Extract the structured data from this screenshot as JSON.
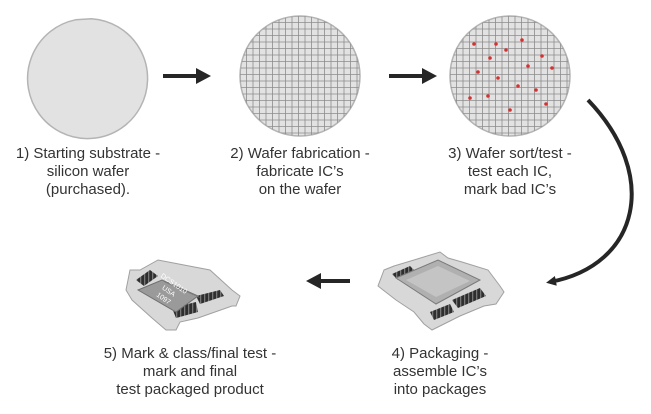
{
  "steps": [
    {
      "lines": [
        "1) Starting substrate -",
        "silicon wafer",
        "(purchased)."
      ]
    },
    {
      "lines": [
        "2) Wafer fabrication -",
        "fabricate IC’s",
        "on the wafer"
      ]
    },
    {
      "lines": [
        "3) Wafer sort/test -",
        "test each IC,",
        "mark bad IC’s"
      ]
    },
    {
      "lines": [
        "4) Packaging -",
        "assemble IC’s",
        "into packages"
      ]
    },
    {
      "lines": [
        "5) Mark & class/final test -",
        "mark and final",
        "test packaged product"
      ]
    }
  ],
  "chip_marking": [
    "DCS1010",
    "USA",
    "1097"
  ],
  "colors": {
    "wafer_fill": "#e2e2e2",
    "wafer_edge": "#b4b4b4",
    "grid_line": "#8c8c8c",
    "bad_mark": "#d23232",
    "arrow": "#262626",
    "text": "#333333",
    "package_top": "#9a9a9a",
    "package_frame": "#d8d8d8",
    "package_leads": "#2e2e2e"
  }
}
